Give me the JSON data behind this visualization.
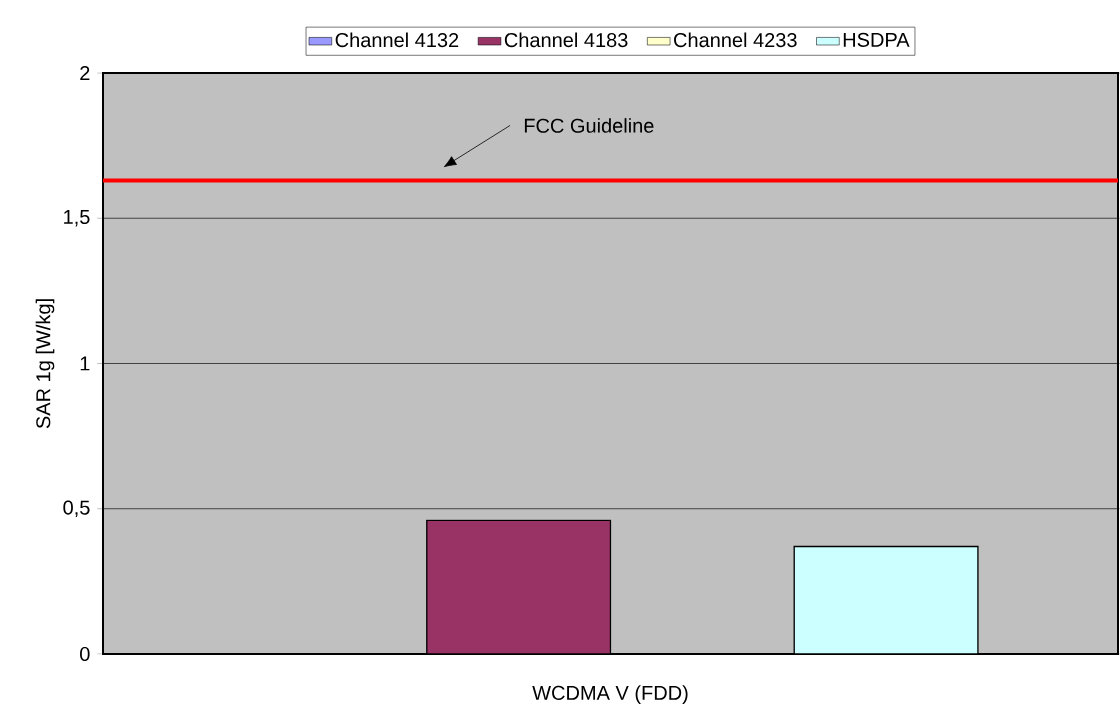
{
  "chart_data": {
    "type": "bar",
    "categories": [
      "WCDMA V (FDD)"
    ],
    "ylabel": "SAR 1g [W/kg]",
    "series": [
      {
        "name": "Channel 4132",
        "color": "#9999ff",
        "values": [
          null
        ]
      },
      {
        "name": "Channel 4183",
        "color": "#993366",
        "values": [
          0.46
        ]
      },
      {
        "name": "Channel 4233",
        "color": "#ffffcc",
        "values": [
          null
        ]
      },
      {
        "name": "HSDPA",
        "color": "#ccffff",
        "values": [
          0.37
        ]
      }
    ],
    "ylim": [
      0,
      2
    ],
    "yticks": [
      0,
      {
        "value": 0.5,
        "label": "0,5"
      },
      1,
      {
        "value": 1.5,
        "label": "1,5"
      },
      2
    ],
    "grid": "y",
    "legend": "top",
    "ref_lines": [
      {
        "axis": "y",
        "value": 1.63,
        "label": "FCC Guideline",
        "color": "#ff0000"
      }
    ]
  }
}
